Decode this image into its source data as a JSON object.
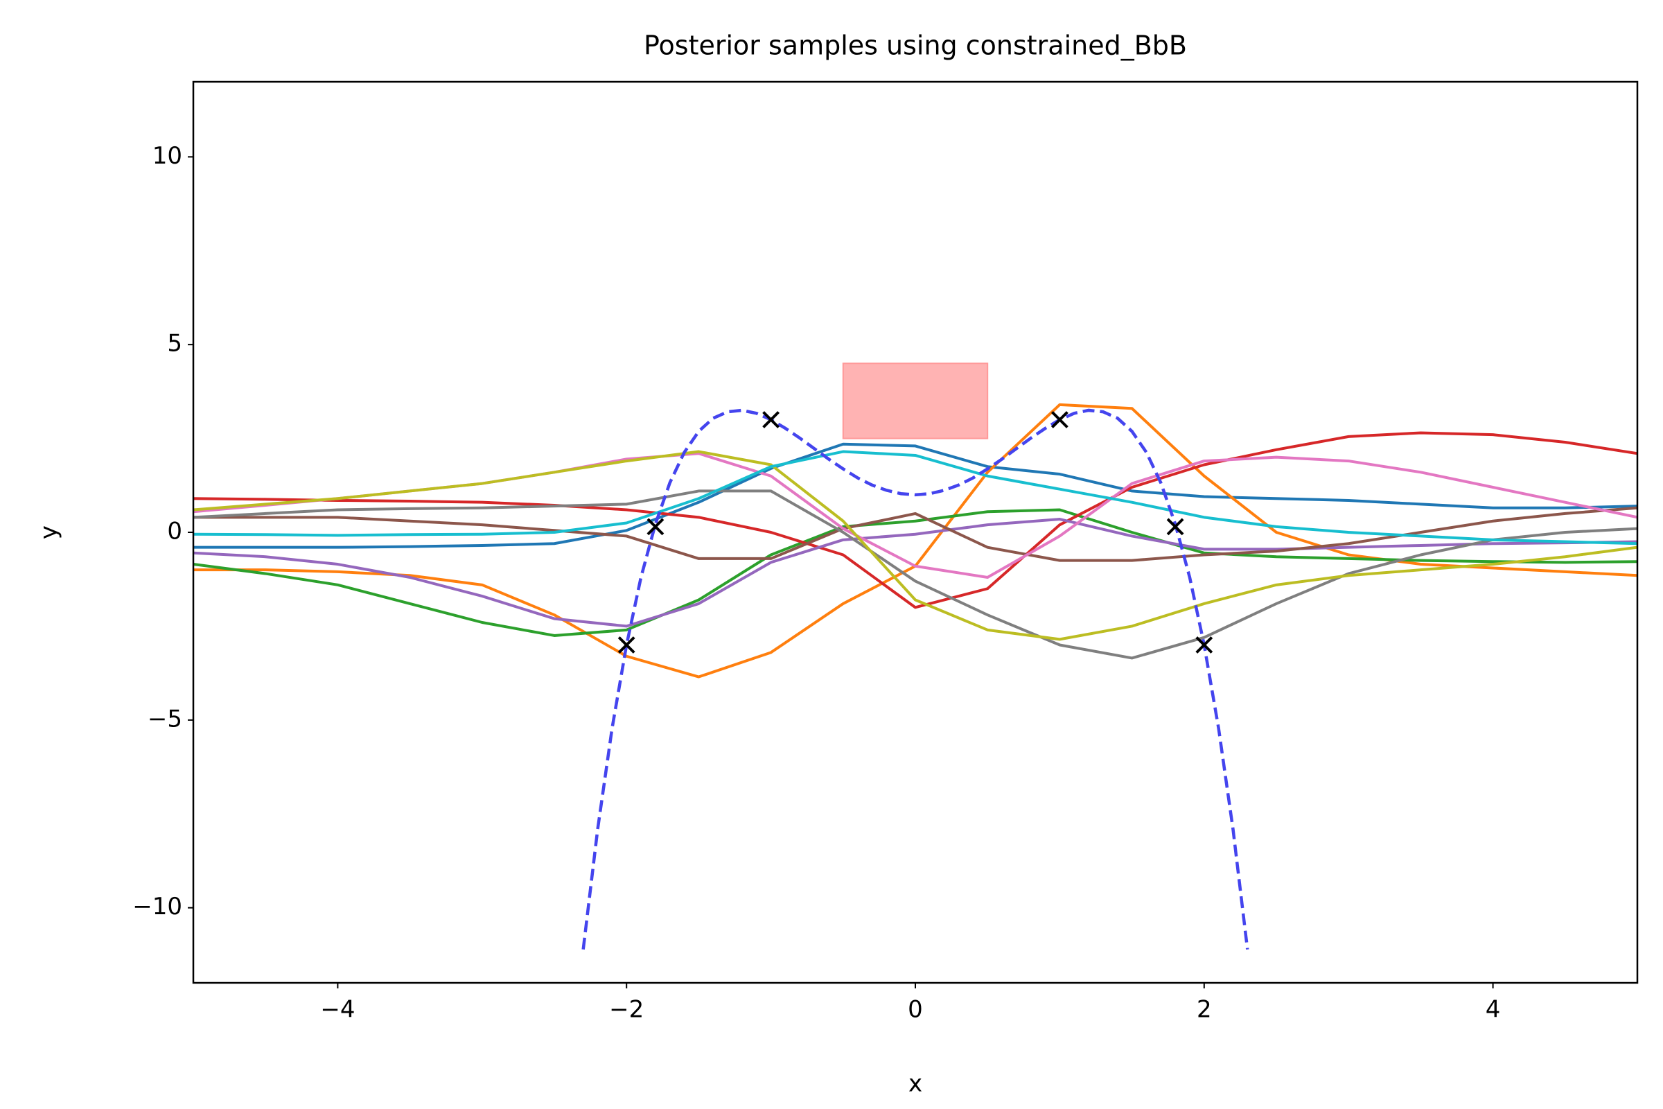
{
  "chart_data": {
    "type": "line",
    "title": "Posterior samples using constrained_BbB",
    "x_label": "x",
    "y_label": "y",
    "xlim": [
      -5,
      5
    ],
    "ylim": [
      -12,
      12
    ],
    "xticks": [
      {
        "value": -4,
        "label": "−4"
      },
      {
        "value": -2,
        "label": "−2"
      },
      0,
      2,
      4
    ],
    "yticks": [
      {
        "value": -10,
        "label": "−10"
      },
      {
        "value": -5,
        "label": "−5"
      },
      0,
      5,
      10
    ],
    "x": [
      -5,
      -4.5,
      -4,
      -3.5,
      -3,
      -2.5,
      -2,
      -1.5,
      -1,
      -0.5,
      0,
      0.5,
      1,
      1.5,
      2,
      2.5,
      3,
      3.5,
      4,
      4.5,
      5
    ],
    "series": [
      {
        "color": "#1f77b4",
        "values": [
          -0.4,
          -0.4,
          -0.4,
          -0.38,
          -0.35,
          -0.3,
          0.05,
          0.8,
          1.7,
          2.35,
          2.3,
          1.75,
          1.55,
          1.1,
          0.95,
          0.9,
          0.85,
          0.75,
          0.65,
          0.65,
          0.7
        ]
      },
      {
        "color": "#ff7f0e",
        "values": [
          -1,
          -1,
          -1.05,
          -1.15,
          -1.4,
          -2.2,
          -3.3,
          -3.85,
          -3.2,
          -1.9,
          -0.9,
          1.6,
          3.4,
          3.3,
          1.5,
          0,
          -0.6,
          -0.85,
          -0.95,
          -1.05,
          -1.15
        ]
      },
      {
        "color": "#2ca02c",
        "values": [
          -0.85,
          -1.1,
          -1.4,
          -1.9,
          -2.4,
          -2.75,
          -2.6,
          -1.8,
          -0.6,
          0.15,
          0.3,
          0.55,
          0.6,
          0,
          -0.55,
          -0.65,
          -0.7,
          -0.75,
          -0.78,
          -0.8,
          -0.78
        ]
      },
      {
        "color": "#d62728",
        "values": [
          0.9,
          0.88,
          0.85,
          0.83,
          0.8,
          0.72,
          0.6,
          0.4,
          0,
          -0.6,
          -2,
          -1.5,
          0.2,
          1.2,
          1.8,
          2.2,
          2.55,
          2.65,
          2.6,
          2.4,
          2.1
        ]
      },
      {
        "color": "#9467bd",
        "values": [
          -0.55,
          -0.65,
          -0.85,
          -1.2,
          -1.7,
          -2.3,
          -2.5,
          -1.9,
          -0.8,
          -0.2,
          -0.05,
          0.2,
          0.35,
          -0.1,
          -0.45,
          -0.45,
          -0.4,
          -0.35,
          -0.3,
          -0.28,
          -0.25
        ]
      },
      {
        "color": "#8c564b",
        "values": [
          0.4,
          0.4,
          0.4,
          0.3,
          0.2,
          0.05,
          -0.1,
          -0.7,
          -0.7,
          0.1,
          0.5,
          -0.4,
          -0.75,
          -0.75,
          -0.6,
          -0.5,
          -0.3,
          0,
          0.3,
          0.5,
          0.65
        ]
      },
      {
        "color": "#e377c2",
        "values": [
          0.55,
          0.72,
          0.9,
          1.1,
          1.3,
          1.6,
          1.95,
          2.1,
          1.5,
          0.1,
          -0.9,
          -1.2,
          -0.1,
          1.3,
          1.9,
          2,
          1.9,
          1.6,
          1.2,
          0.8,
          0.4
        ]
      },
      {
        "color": "#7f7f7f",
        "values": [
          0.4,
          0.5,
          0.6,
          0.63,
          0.65,
          0.7,
          0.75,
          1.1,
          1.1,
          0,
          -1.3,
          -2.2,
          -3,
          -3.35,
          -2.8,
          -1.9,
          -1.1,
          -0.6,
          -0.2,
          0,
          0.1
        ]
      },
      {
        "color": "#bcbd22",
        "values": [
          0.6,
          0.75,
          0.9,
          1.1,
          1.3,
          1.6,
          1.9,
          2.15,
          1.8,
          0.3,
          -1.8,
          -2.6,
          -2.85,
          -2.5,
          -1.9,
          -1.4,
          -1.15,
          -1,
          -0.85,
          -0.65,
          -0.4
        ]
      },
      {
        "color": "#17becf",
        "values": [
          -0.05,
          -0.06,
          -0.08,
          -0.06,
          -0.05,
          0,
          0.25,
          0.9,
          1.75,
          2.15,
          2.05,
          1.5,
          1.15,
          0.8,
          0.4,
          0.15,
          0,
          -0.1,
          -0.2,
          -0.25,
          -0.3
        ]
      }
    ],
    "true_function": {
      "color": "#4444ee",
      "dashed": true,
      "x": [
        -2.3,
        -2.2,
        -2.1,
        -2,
        -1.9,
        -1.8,
        -1.7,
        -1.6,
        -1.5,
        -1.4,
        -1.3,
        -1.2,
        -1.1,
        -1,
        -0.9,
        -0.8,
        -0.7,
        -0.6,
        -0.5,
        -0.4,
        -0.3,
        -0.2,
        -0.1,
        0,
        0.1,
        0.2,
        0.3,
        0.4,
        0.5,
        0.6,
        0.7,
        0.8,
        0.9,
        1,
        1.1,
        1.2,
        1.3,
        1.4,
        1.5,
        1.6,
        1.7,
        1.8,
        1.9,
        2,
        2.1,
        2.2,
        2.3
      ],
      "values": [
        -11.11,
        -7.91,
        -5.22,
        -3,
        -1.2,
        0.22,
        1.32,
        2.13,
        2.69,
        3.04,
        3.21,
        3.25,
        3.17,
        3,
        2.77,
        2.51,
        2.23,
        1.95,
        1.69,
        1.45,
        1.26,
        1.12,
        1.03,
        1,
        1.03,
        1.12,
        1.26,
        1.45,
        1.69,
        1.95,
        2.23,
        2.51,
        2.77,
        3,
        3.17,
        3.25,
        3.21,
        3.04,
        2.69,
        2.13,
        1.32,
        0.22,
        -1.2,
        -3,
        -5.22,
        -7.91,
        -11.11
      ]
    },
    "observations": {
      "color": "#000000",
      "x": [
        -2,
        -1.8,
        -1,
        1,
        1.8,
        2
      ],
      "values": [
        -3,
        0.15,
        3,
        3,
        0.15,
        -3
      ]
    },
    "constraint_region": {
      "color": "#ff9999",
      "x": [
        -0.5,
        0.5
      ],
      "y": [
        2.5,
        4.5
      ]
    }
  }
}
